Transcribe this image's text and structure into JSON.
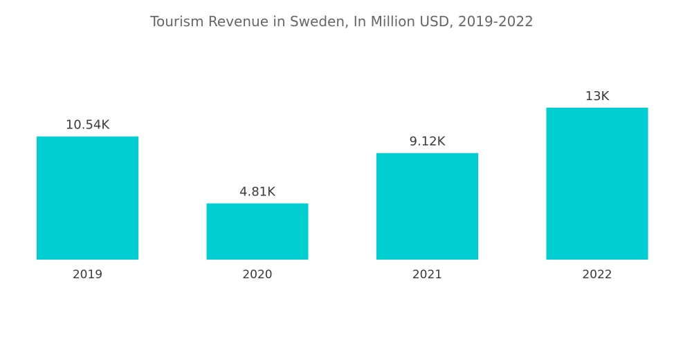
{
  "chart_data": {
    "type": "bar",
    "title": "Tourism Revenue in Sweden, In Million USD, 2019-2022",
    "xlabel": "",
    "ylabel": "",
    "categories": [
      "2019",
      "2020",
      "2021",
      "2022"
    ],
    "values": [
      10540,
      4810,
      9120,
      13000
    ],
    "value_labels": [
      "10.54K",
      "4.81K",
      "9.12K",
      "13K"
    ],
    "ylim": [
      0,
      13000
    ],
    "grid": false,
    "legend": "none",
    "bar_color": "#00CED1"
  }
}
